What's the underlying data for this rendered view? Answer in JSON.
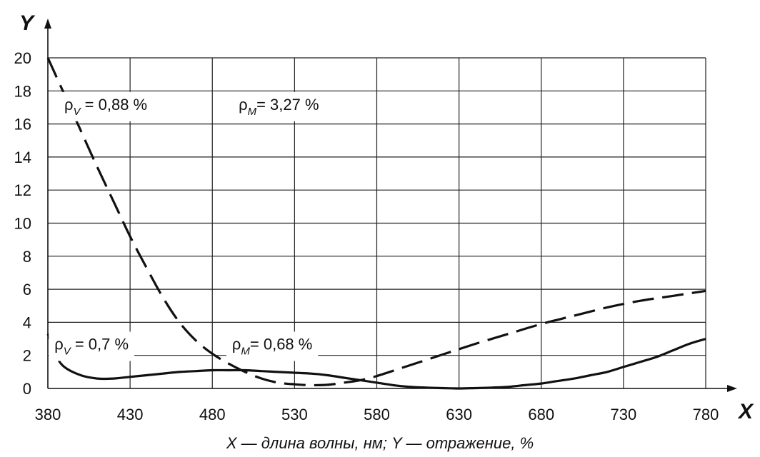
{
  "chart_data": {
    "type": "line",
    "title": "",
    "xlabel": "X",
    "ylabel": "Y",
    "caption": "X — длина волны, нм; Y — отражение, %",
    "xlim": [
      380,
      780
    ],
    "ylim": [
      0,
      20
    ],
    "x_ticks": [
      380,
      430,
      480,
      530,
      580,
      630,
      680,
      730,
      780
    ],
    "y_ticks": [
      0,
      2,
      4,
      6,
      8,
      10,
      12,
      14,
      16,
      18,
      20
    ],
    "grid": true,
    "series": [
      {
        "style": "dashed",
        "x": [
          380,
          390,
          400,
          410,
          420,
          430,
          440,
          450,
          460,
          470,
          480,
          490,
          500,
          510,
          520,
          530,
          540,
          550,
          560,
          570,
          580,
          600,
          620,
          640,
          660,
          680,
          700,
          720,
          740,
          760,
          780
        ],
        "y": [
          20.0,
          17.8,
          15.6,
          13.4,
          11.3,
          9.2,
          7.3,
          5.5,
          4.0,
          2.9,
          2.1,
          1.5,
          1.0,
          0.6,
          0.35,
          0.25,
          0.2,
          0.22,
          0.35,
          0.5,
          0.75,
          1.4,
          2.05,
          2.7,
          3.3,
          3.9,
          4.4,
          4.9,
          5.3,
          5.6,
          5.9
        ]
      },
      {
        "style": "solid",
        "x": [
          380,
          385,
          390,
          400,
          410,
          420,
          430,
          440,
          450,
          460,
          470,
          480,
          490,
          500,
          510,
          520,
          530,
          540,
          550,
          560,
          570,
          580,
          590,
          600,
          610,
          620,
          630,
          640,
          650,
          660,
          670,
          680,
          690,
          700,
          710,
          720,
          730,
          740,
          750,
          760,
          770,
          780
        ],
        "y": [
          3.3,
          2.0,
          1.3,
          0.8,
          0.6,
          0.6,
          0.7,
          0.8,
          0.9,
          1.0,
          1.05,
          1.1,
          1.1,
          1.1,
          1.05,
          1.0,
          0.95,
          0.9,
          0.8,
          0.65,
          0.5,
          0.35,
          0.2,
          0.1,
          0.05,
          0.02,
          0.0,
          0.02,
          0.05,
          0.1,
          0.2,
          0.3,
          0.45,
          0.6,
          0.8,
          1.0,
          1.3,
          1.6,
          1.9,
          2.3,
          2.7,
          3.0
        ]
      }
    ],
    "annotations": [
      {
        "symbol": "ρ",
        "sub": "V",
        "text": " = 0,88 %",
        "x": 390,
        "y": 17.2
      },
      {
        "symbol": "ρ",
        "sub": "M",
        "text": "= 3,27 %",
        "x": 496,
        "y": 17.2
      },
      {
        "symbol": "ρ",
        "sub": "V",
        "text": " = 0,7 %",
        "x": 384,
        "y": 2.7
      },
      {
        "symbol": "ρ",
        "sub": "M",
        "text": "= 0,68 %",
        "x": 492,
        "y": 2.7
      }
    ]
  }
}
